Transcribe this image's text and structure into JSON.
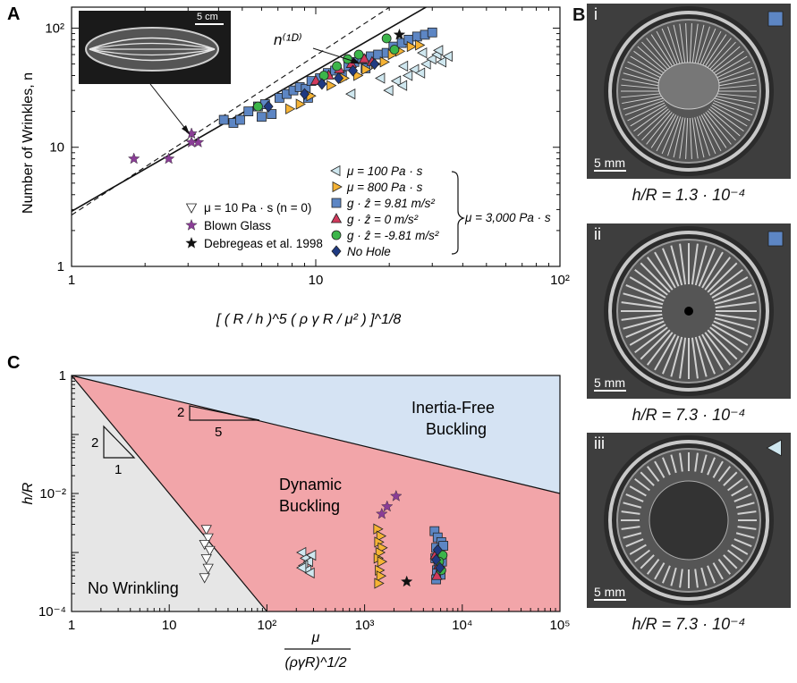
{
  "panels": {
    "A": {
      "letter": "A",
      "ylabel": "Number of Wrinkles, n",
      "xlabel_main": "[ ( R / h )^5 ( ρ γ R / μ² ) ]^1/8",
      "y_ticks": [
        "1",
        "10",
        "10²"
      ],
      "x_ticks": [
        "1",
        "10",
        "10²"
      ],
      "inset_scale": "5 cm",
      "theory_label": "n⁽¹ᴰ⁾",
      "legend_right": [
        {
          "label": "μ = 100 Pa · s",
          "marker": "triangle-left",
          "color": "#cfe7ef"
        },
        {
          "label": "μ = 800 Pa · s",
          "marker": "triangle-right",
          "color": "#f5b335"
        },
        {
          "label": "g · ẑ = 9.81 m/s²",
          "marker": "square",
          "color": "#5d86c4"
        },
        {
          "label": "g · ẑ = 0 m/s²",
          "marker": "triangle-up",
          "color": "#d13a5c"
        },
        {
          "label": "g · ẑ = -9.81 m/s²",
          "marker": "circle",
          "color": "#3cb54a"
        },
        {
          "label": "No Hole",
          "marker": "diamond",
          "color": "#1f3a82"
        }
      ],
      "legend_left": [
        {
          "label": "μ = 10 Pa · s  (n = 0)",
          "marker": "triangle-down",
          "color": "#ffffff"
        },
        {
          "label": "Blown Glass",
          "marker": "star",
          "color": "#8a3d96"
        },
        {
          "label": "Debregeas et al. 1998",
          "marker": "star",
          "color": "#111111"
        }
      ],
      "brace_label": "μ = 3,000 Pa · s"
    },
    "B": {
      "letter": "B",
      "photos": [
        {
          "roman": "i",
          "scale": "5 mm",
          "caption": "h/R = 1.3 · 10⁻⁴",
          "marker": "square",
          "color": "#5d86c4"
        },
        {
          "roman": "ii",
          "scale": "5 mm",
          "caption": "h/R = 7.3 · 10⁻⁴",
          "marker": "square",
          "color": "#5d86c4"
        },
        {
          "roman": "iii",
          "scale": "5 mm",
          "caption": "h/R = 7.3 · 10⁻⁴",
          "marker": "triangle-left",
          "color": "#cfe7ef"
        }
      ]
    },
    "C": {
      "letter": "C",
      "ylabel": "h/R",
      "xlabel_num": "μ",
      "xlabel_den": "(ργR)^1/2",
      "y_ticks": [
        "1",
        "10⁻²",
        "10⁻⁴"
      ],
      "x_ticks": [
        "1",
        "10",
        "10²",
        "10³",
        "10⁴",
        "10⁵"
      ],
      "regions": {
        "inertia_free_1": "Inertia-Free",
        "inertia_free_2": "Buckling",
        "dynamic_1": "Dynamic",
        "dynamic_2": "Buckling",
        "no_wrinkling": "No Wrinkling"
      },
      "slope_a": {
        "rise": "2",
        "run": "5"
      },
      "slope_b": {
        "rise": "2",
        "run": "1"
      }
    }
  },
  "chart_data": [
    {
      "type": "scatter",
      "panel": "A",
      "xscale": "log",
      "yscale": "log",
      "xlim": [
        1,
        100
      ],
      "ylim": [
        1,
        150
      ],
      "lines": [
        {
          "style": "solid",
          "points": [
            [
              1,
              2.9
            ],
            [
              33,
              180
            ]
          ]
        },
        {
          "style": "dashed",
          "points": [
            [
              1,
              2.7
            ],
            [
              23,
              180
            ]
          ]
        }
      ],
      "series": [
        {
          "name": "Blown Glass",
          "marker": "star",
          "color": "#8a3d96",
          "points": [
            [
              1.8,
              8
            ],
            [
              2.5,
              8
            ],
            [
              3.1,
              13
            ],
            [
              3.3,
              11
            ],
            [
              3.1,
              11
            ]
          ]
        },
        {
          "name": "Debregeas et al. 1998",
          "marker": "star",
          "color": "#111111",
          "points": [
            [
              22,
              88
            ]
          ]
        },
        {
          "name": "g · ẑ = 9.81 m/s²",
          "marker": "square",
          "color": "#5d86c4",
          "points": [
            [
              4.2,
              17
            ],
            [
              4.6,
              16
            ],
            [
              4.9,
              17
            ],
            [
              5.3,
              20
            ],
            [
              5.8,
              22
            ],
            [
              6.2,
              23
            ],
            [
              6.6,
              19
            ],
            [
              7.1,
              26
            ],
            [
              7.6,
              28
            ],
            [
              8.1,
              30
            ],
            [
              8.6,
              32
            ],
            [
              9.1,
              31
            ],
            [
              9.6,
              36
            ],
            [
              10.4,
              38
            ],
            [
              11.2,
              42
            ],
            [
              12.0,
              44
            ],
            [
              12.8,
              40
            ],
            [
              13.6,
              48
            ],
            [
              14.4,
              52
            ],
            [
              15.5,
              55
            ],
            [
              16.8,
              58
            ],
            [
              18.0,
              60
            ],
            [
              19.5,
              62
            ],
            [
              20.8,
              70
            ],
            [
              22.5,
              75
            ],
            [
              24.0,
              80
            ],
            [
              26.0,
              85
            ],
            [
              28.0,
              88
            ],
            [
              30.0,
              92
            ],
            [
              16.0,
              46
            ],
            [
              9.3,
              26
            ],
            [
              6.0,
              18
            ]
          ]
        },
        {
          "name": "μ = 100 Pa · s",
          "marker": "triangle-left",
          "color": "#cfe7ef",
          "points": [
            [
              20.0,
              30
            ],
            [
              21.5,
              36
            ],
            [
              22.8,
              33
            ],
            [
              24.0,
              40
            ],
            [
              25.5,
              45
            ],
            [
              27.0,
              42
            ],
            [
              28.5,
              50
            ],
            [
              30.0,
              55
            ],
            [
              31.5,
              60
            ],
            [
              33.0,
              52
            ],
            [
              35.0,
              58
            ],
            [
              18.5,
              38
            ],
            [
              23.0,
              48
            ],
            [
              27.5,
              62
            ],
            [
              32.0,
              65
            ],
            [
              14.0,
              28
            ]
          ]
        },
        {
          "name": "μ = 800 Pa · s",
          "marker": "triangle-right",
          "color": "#f5b335",
          "points": [
            [
              7.8,
              21
            ],
            [
              8.6,
              23
            ],
            [
              9.5,
              27
            ],
            [
              11.5,
              33
            ],
            [
              13.0,
              38
            ],
            [
              14.8,
              40
            ],
            [
              16.0,
              45
            ],
            [
              17.5,
              50
            ],
            [
              19.0,
              52
            ],
            [
              20.5,
              60
            ],
            [
              22.0,
              64
            ],
            [
              24.5,
              70
            ],
            [
              26.5,
              72
            ]
          ]
        },
        {
          "name": "g · ẑ = 0 m/s²",
          "marker": "triangle-up",
          "color": "#d13a5c",
          "points": [
            [
              10.0,
              36
            ],
            [
              11.3,
              40
            ],
            [
              12.5,
              45
            ],
            [
              14.0,
              50
            ],
            [
              15.8,
              55
            ],
            [
              17.0,
              52
            ]
          ]
        },
        {
          "name": "g · ẑ = -9.81 m/s²",
          "marker": "circle",
          "color": "#3cb54a",
          "points": [
            [
              5.8,
              22
            ],
            [
              10.8,
              40
            ],
            [
              12.2,
              48
            ],
            [
              13.5,
              55
            ],
            [
              15.0,
              60
            ],
            [
              19.5,
              82
            ],
            [
              21.0,
              66
            ]
          ]
        },
        {
          "name": "No Hole",
          "marker": "diamond",
          "color": "#1f3a82",
          "points": [
            [
              6.4,
              22
            ],
            [
              9.0,
              28
            ],
            [
              10.6,
              34
            ],
            [
              12.4,
              38
            ],
            [
              14.2,
              44
            ],
            [
              17.4,
              50
            ]
          ]
        }
      ]
    },
    {
      "type": "scatter",
      "panel": "C",
      "xscale": "log",
      "yscale": "log",
      "xlim": [
        1,
        100000
      ],
      "ylim": [
        0.0001,
        1
      ],
      "boundaries": [
        {
          "name": "upper",
          "points": [
            [
              1,
              1
            ],
            [
              100000,
              0.01
            ]
          ]
        },
        {
          "name": "lower",
          "points": [
            [
              1,
              1
            ],
            [
              100,
              0.0001
            ]
          ]
        }
      ],
      "series": [
        {
          "name": "μ = 10 Pa · s  (n = 0)",
          "marker": "triangle-down",
          "color": "#ffffff",
          "points": [
            [
              24,
              0.0025
            ],
            [
              25,
              0.0018
            ],
            [
              23,
              0.0014
            ],
            [
              26,
              0.0011
            ],
            [
              24,
              0.0008
            ],
            [
              25,
              0.00055
            ],
            [
              23,
              0.00038
            ]
          ]
        },
        {
          "name": "μ = 100 Pa · s",
          "marker": "triangle-left",
          "color": "#cfe7ef",
          "points": [
            [
              230,
              0.001
            ],
            [
              250,
              0.0008
            ],
            [
              270,
              0.0007
            ],
            [
              240,
              0.0006
            ],
            [
              260,
              0.0005
            ],
            [
              280,
              0.00045
            ],
            [
              290,
              0.0009
            ],
            [
              230,
              0.00055
            ]
          ]
        },
        {
          "name": "μ = 800 Pa · s",
          "marker": "triangle-right",
          "color": "#f5b335",
          "points": [
            [
              1350,
              0.0025
            ],
            [
              1450,
              0.0019
            ],
            [
              1380,
              0.0015
            ],
            [
              1500,
              0.0012
            ],
            [
              1420,
              0.001
            ],
            [
              1360,
              0.0008
            ],
            [
              1480,
              0.0007
            ],
            [
              1400,
              0.0005
            ],
            [
              1450,
              0.0004
            ],
            [
              1380,
              0.0003
            ]
          ]
        },
        {
          "name": "Blown Glass",
          "marker": "star",
          "color": "#8a3d96",
          "points": [
            [
              1500,
              0.0045
            ],
            [
              1700,
              0.006
            ],
            [
              2100,
              0.009
            ]
          ]
        },
        {
          "name": "Debregeas et al. 1998",
          "marker": "star",
          "color": "#111111",
          "points": [
            [
              2700,
              0.00032
            ]
          ]
        },
        {
          "name": "g · ẑ = 9.81 m/s²",
          "marker": "square",
          "color": "#5d86c4",
          "points": [
            [
              5200,
              0.0023
            ],
            [
              5600,
              0.0018
            ],
            [
              6100,
              0.0015
            ],
            [
              5400,
              0.0012
            ],
            [
              5800,
              0.001
            ],
            [
              5300,
              0.0008
            ],
            [
              6200,
              0.0007
            ],
            [
              5700,
              0.0006
            ],
            [
              5500,
              0.0005
            ],
            [
              6000,
              0.00042
            ],
            [
              5400,
              0.00035
            ],
            [
              6400,
              0.0013
            ]
          ]
        },
        {
          "name": "g · ẑ = 0 m/s²",
          "marker": "triangle-up",
          "color": "#d13a5c",
          "points": [
            [
              5300,
              0.0009
            ],
            [
              5700,
              0.0006
            ],
            [
              5500,
              0.0004
            ]
          ]
        },
        {
          "name": "g · ẑ = -9.81 m/s²",
          "marker": "circle",
          "color": "#3cb54a",
          "points": [
            [
              6300,
              0.0009
            ],
            [
              5800,
              0.0007
            ],
            [
              6100,
              0.0005
            ]
          ]
        },
        {
          "name": "No Hole",
          "marker": "diamond",
          "color": "#1f3a82",
          "points": [
            [
              5600,
              0.0011
            ],
            [
              5400,
              0.00075
            ],
            [
              5900,
              0.00055
            ]
          ]
        }
      ]
    }
  ]
}
